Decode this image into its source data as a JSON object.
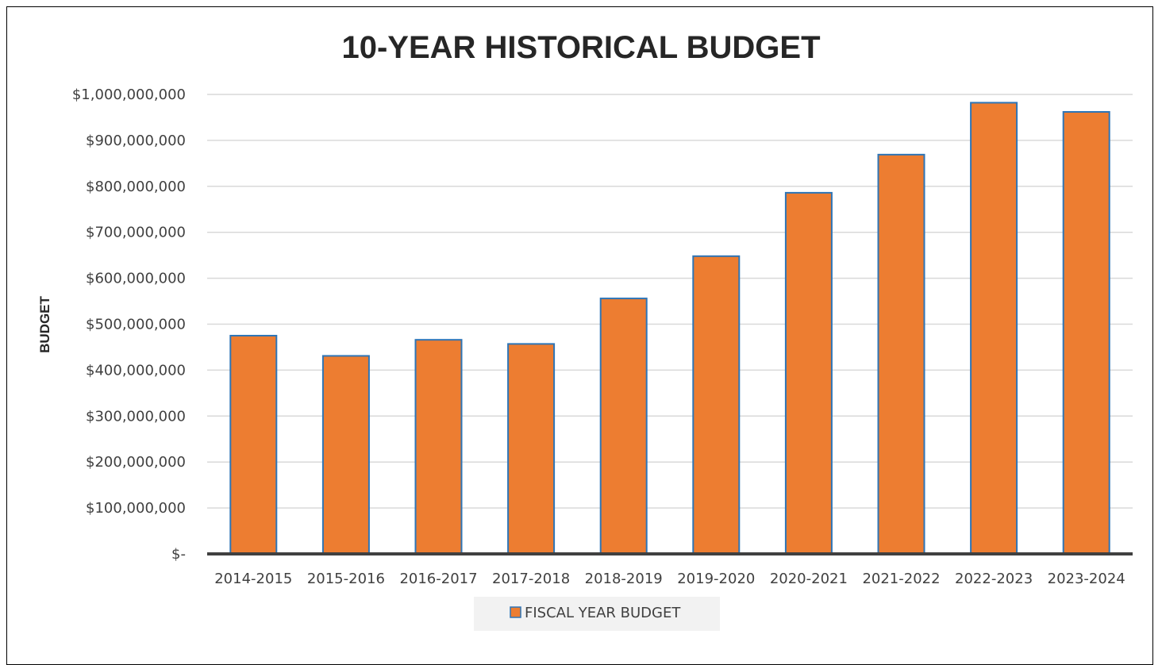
{
  "chart_data": {
    "type": "bar",
    "title": "10-YEAR HISTORICAL BUDGET",
    "ylabel": "BUDGET",
    "xlabel": "",
    "categories": [
      "2014-2015",
      "2015-2016",
      "2016-2017",
      "2017-2018",
      "2018-2019",
      "2019-2020",
      "2020-2021",
      "2021-2022",
      "2022-2023",
      "2023-2024"
    ],
    "series": [
      {
        "name": "FISCAL YEAR BUDGET",
        "values": [
          475000000,
          431000000,
          466000000,
          457000000,
          556000000,
          648000000,
          786000000,
          869000000,
          982000000,
          962000000
        ]
      }
    ],
    "ylim": [
      0,
      1000000000
    ],
    "yticks": [
      0,
      100000000,
      200000000,
      300000000,
      400000000,
      500000000,
      600000000,
      700000000,
      800000000,
      900000000,
      1000000000
    ],
    "ytick_labels": [
      "$-",
      "$100,000,000",
      "$200,000,000",
      "$300,000,000",
      "$400,000,000",
      "$500,000,000",
      "$600,000,000",
      "$700,000,000",
      "$800,000,000",
      "$900,000,000",
      "$1,000,000,000"
    ],
    "grid": true,
    "legend": "bottom-center",
    "colors": {
      "bar_fill": "#ED7D31",
      "bar_stroke": "#2E75B6",
      "grid": "#D9D9D9",
      "axis": "#404040"
    }
  }
}
